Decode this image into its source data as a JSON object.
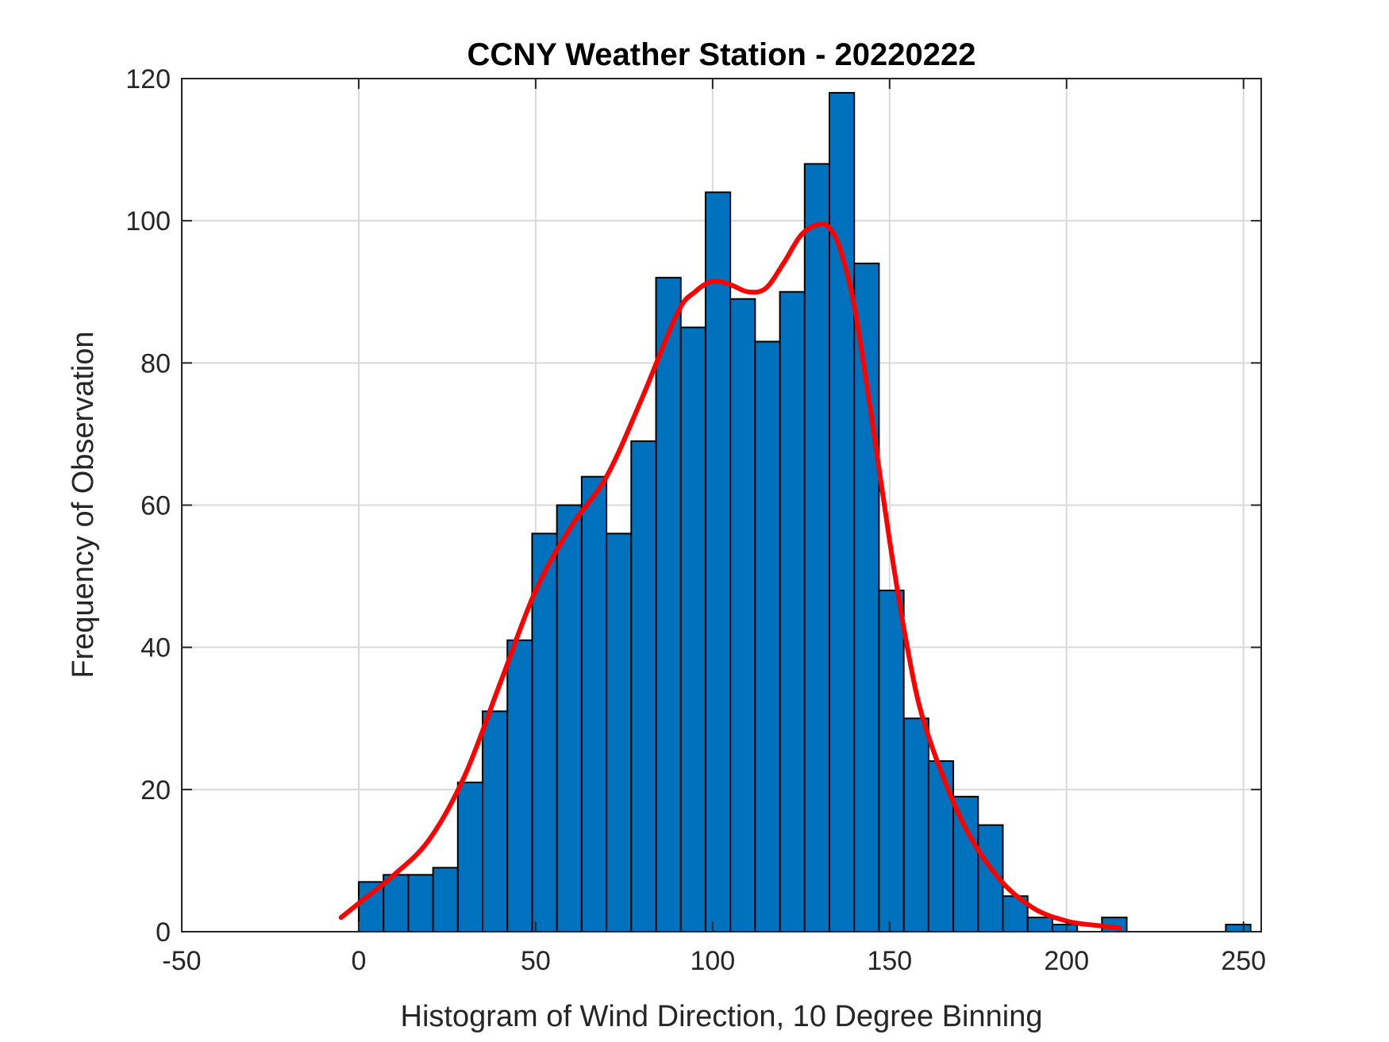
{
  "chart_data": {
    "type": "bar",
    "title": "CCNY Weather Station - 20220222",
    "xlabel": "Histogram of Wind Direction, 10 Degree Binning",
    "ylabel": "Frequency of Observation",
    "xlim": [
      -50,
      255
    ],
    "ylim": [
      0,
      120
    ],
    "xticks": [
      -50,
      0,
      50,
      100,
      150,
      200,
      250
    ],
    "yticks": [
      0,
      20,
      40,
      60,
      80,
      100,
      120
    ],
    "grid": true,
    "bin_width": 7,
    "colors": {
      "bars": "#0072BD",
      "bar_edge": "#000000",
      "fit": "#FF0000",
      "grid": "#d9d9d9"
    },
    "bars": [
      {
        "x_start": 0,
        "value": 7
      },
      {
        "x_start": 7,
        "value": 8
      },
      {
        "x_start": 14,
        "value": 8
      },
      {
        "x_start": 21,
        "value": 9
      },
      {
        "x_start": 28,
        "value": 21
      },
      {
        "x_start": 35,
        "value": 31
      },
      {
        "x_start": 42,
        "value": 41
      },
      {
        "x_start": 49,
        "value": 56
      },
      {
        "x_start": 56,
        "value": 60
      },
      {
        "x_start": 63,
        "value": 64
      },
      {
        "x_start": 70,
        "value": 56
      },
      {
        "x_start": 77,
        "value": 69
      },
      {
        "x_start": 84,
        "value": 92
      },
      {
        "x_start": 91,
        "value": 85
      },
      {
        "x_start": 98,
        "value": 104
      },
      {
        "x_start": 105,
        "value": 89
      },
      {
        "x_start": 112,
        "value": 83
      },
      {
        "x_start": 119,
        "value": 90
      },
      {
        "x_start": 126,
        "value": 108
      },
      {
        "x_start": 133,
        "value": 118
      },
      {
        "x_start": 140,
        "value": 94
      },
      {
        "x_start": 147,
        "value": 48
      },
      {
        "x_start": 154,
        "value": 30
      },
      {
        "x_start": 161,
        "value": 24
      },
      {
        "x_start": 168,
        "value": 19
      },
      {
        "x_start": 175,
        "value": 15
      },
      {
        "x_start": 182,
        "value": 5
      },
      {
        "x_start": 189,
        "value": 2
      },
      {
        "x_start": 196,
        "value": 1
      },
      {
        "x_start": 210,
        "value": 2
      },
      {
        "x_start": 245,
        "value": 1
      }
    ],
    "fit_curve": {
      "x": [
        -5,
        0,
        10,
        20,
        30,
        40,
        50,
        60,
        70,
        80,
        90,
        95,
        100,
        105,
        110,
        115,
        120,
        125,
        130,
        133,
        136,
        140,
        145,
        150,
        155,
        160,
        170,
        180,
        190,
        200,
        210,
        215
      ],
      "y": [
        2,
        4,
        8,
        13,
        22,
        35,
        48,
        57,
        64,
        75,
        87,
        90,
        91.5,
        91,
        90,
        90.5,
        94,
        98,
        99.5,
        99,
        96,
        88,
        72,
        55,
        40,
        29,
        16,
        8,
        3.5,
        1.5,
        0.8,
        0.5
      ]
    }
  }
}
